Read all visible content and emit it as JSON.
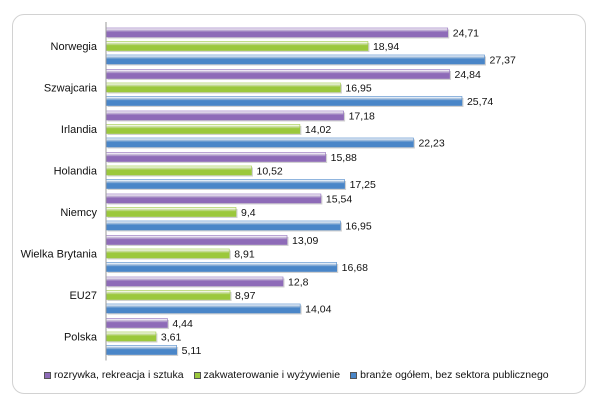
{
  "chart_data": {
    "type": "bar",
    "orientation": "horizontal",
    "categories": [
      "Norwegia",
      "Szwajcaria",
      "Irlandia",
      "Holandia",
      "Niemcy",
      "Wielka Brytania",
      "EU27",
      "Polska"
    ],
    "series": [
      {
        "name": "rozrywka, rekreacja i sztuka",
        "color": "#8e6bb8",
        "values": [
          24.71,
          24.84,
          17.18,
          15.88,
          15.54,
          13.09,
          12.8,
          4.44
        ],
        "labels": [
          "24,71",
          "24,84",
          "17,18",
          "15,88",
          "15,54",
          "13,09",
          "12,8",
          "4,44"
        ]
      },
      {
        "name": "zakwaterowanie  i wyżywienie",
        "color": "#9bc83c",
        "values": [
          18.94,
          16.95,
          14.02,
          10.52,
          9.4,
          8.91,
          8.97,
          3.61
        ],
        "labels": [
          "18,94",
          "16,95",
          "14,02",
          "10,52",
          "9,4",
          "8,91",
          "8,97",
          "3,61"
        ]
      },
      {
        "name": "branże ogółem, bez sektora publicznego",
        "color": "#4a86c8",
        "values": [
          27.37,
          25.74,
          22.23,
          17.25,
          16.95,
          16.68,
          14.04,
          5.11
        ],
        "labels": [
          "27,37",
          "25,74",
          "22,23",
          "17,25",
          "16,95",
          "16,68",
          "14,04",
          "5,11"
        ]
      }
    ],
    "xlim": [
      0,
      30
    ],
    "grid": false,
    "legend_position": "bottom"
  }
}
